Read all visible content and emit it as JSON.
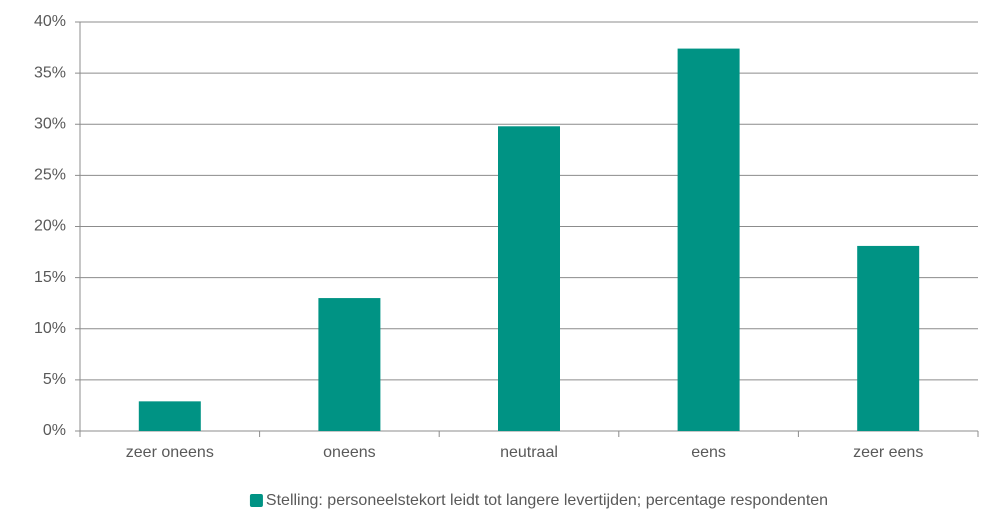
{
  "chart_data": {
    "type": "bar",
    "categories": [
      "zeer oneens",
      "oneens",
      "neutraal",
      "eens",
      "zeer eens"
    ],
    "series": [
      {
        "name": "Stelling: personeelstekort leidt tot langere levertijden; percentage respondenten",
        "color": "#009384",
        "values": [
          2.9,
          13.0,
          29.8,
          37.4,
          18.1
        ]
      }
    ],
    "ylim": [
      0,
      40
    ],
    "yticks": [
      {
        "value": 0,
        "label": "0%"
      },
      {
        "value": 5,
        "label": "5%"
      },
      {
        "value": 10,
        "label": "10%"
      },
      {
        "value": 15,
        "label": "15%"
      },
      {
        "value": 20,
        "label": "20%"
      },
      {
        "value": 25,
        "label": "25%"
      },
      {
        "value": 30,
        "label": "30%"
      },
      {
        "value": 35,
        "label": "35%"
      },
      {
        "value": 40,
        "label": "40%"
      }
    ],
    "grid": true,
    "legend": "bottom"
  }
}
